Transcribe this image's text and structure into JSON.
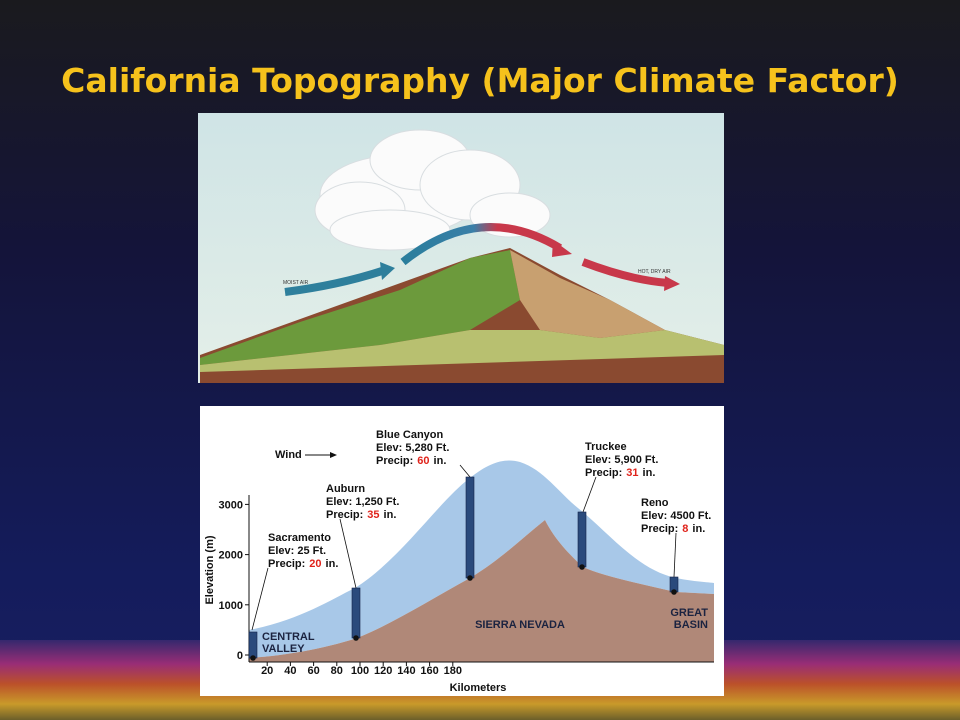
{
  "title": "California Topography (Major Climate Factor)",
  "illustration": {
    "labels": [
      "MOIST AIR",
      "HOT, DRY AIR"
    ]
  },
  "profile": {
    "wind_label": "Wind",
    "y_axis_label": "Elevation (m)",
    "x_axis_label": "Kilometers",
    "yticks": [
      0,
      1000,
      2000,
      3000
    ],
    "xticks": [
      20,
      40,
      60,
      80,
      100,
      120,
      140,
      160,
      180
    ],
    "regions": [
      [
        "CENTRAL",
        "VALLEY"
      ],
      [
        "SIERRA NEVADA"
      ],
      [
        "GREAT",
        "BASIN"
      ]
    ],
    "stations": [
      {
        "name": "Sacramento",
        "elevation": "Elev: 25 Ft.",
        "precip_prefix": "Precip:",
        "precip": 20,
        "precip_suffix": "in."
      },
      {
        "name": "Auburn",
        "elevation": "Elev: 1,250 Ft.",
        "precip_prefix": "Precip:",
        "precip": 35,
        "precip_suffix": "in."
      },
      {
        "name": "Blue Canyon",
        "elevation": "Elev: 5,280 Ft.",
        "precip_prefix": "Precip:",
        "precip": 60,
        "precip_suffix": "in."
      },
      {
        "name": "Truckee",
        "elevation": "Elev: 5,900 Ft.",
        "precip_prefix": "Precip:",
        "precip": 31,
        "precip_suffix": "in."
      },
      {
        "name": "Reno",
        "elevation": "Elev: 4500 Ft.",
        "precip_prefix": "Precip:",
        "precip": 8,
        "precip_suffix": "in."
      }
    ]
  }
}
